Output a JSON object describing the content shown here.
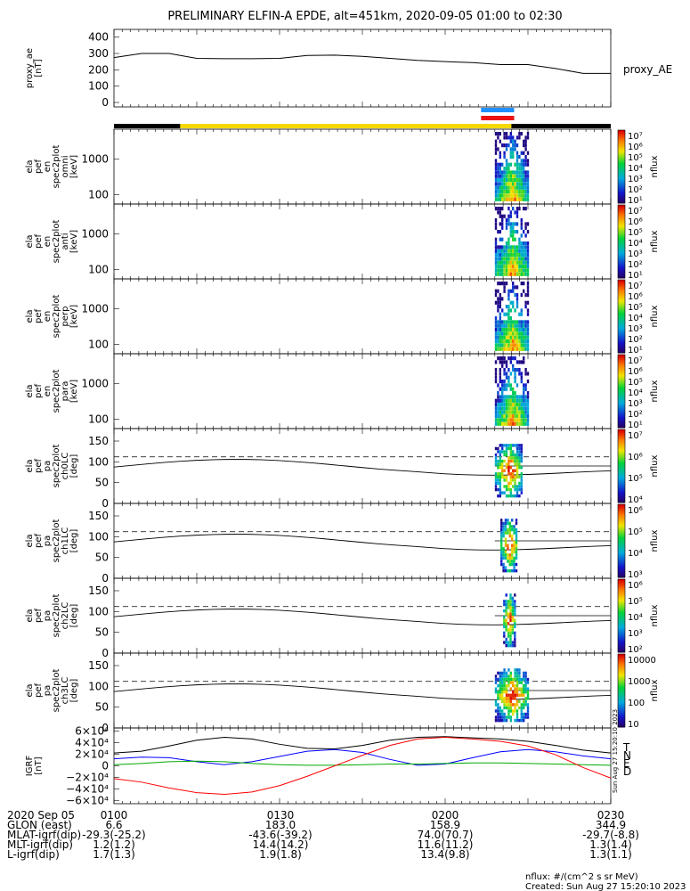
{
  "title": "PRELIMINARY ELFIN-A EPDE, alt=451km, 2020-09-05 01:00 to 02:30",
  "chart_data": {
    "type": "multi-panel",
    "time_range": [
      "2020-09-05 01:00",
      "2020-09-05 02:30"
    ],
    "x_ticks": [
      "0100",
      "0130",
      "0200",
      "0230"
    ],
    "panels": [
      {
        "id": "proxy_ae",
        "type": "line",
        "ylabel": "proxy_ae [nT]",
        "legend": "proxy_AE",
        "ylim": [
          0,
          420
        ],
        "yticks": [
          "400",
          "300",
          "200",
          "100",
          "0"
        ],
        "x_minutes": [
          0,
          5,
          10,
          15,
          20,
          25,
          30,
          35,
          40,
          45,
          50,
          55,
          60,
          65,
          70,
          75,
          80,
          85,
          90
        ],
        "values": [
          275,
          300,
          300,
          270,
          268,
          268,
          270,
          288,
          290,
          282,
          270,
          258,
          250,
          244,
          232,
          232,
          208,
          178,
          178
        ]
      },
      {
        "id": "en_omni",
        "type": "heatmap",
        "ylabel": "ela pef en spec2plot omni [keV]",
        "yscale": "log",
        "ylim": [
          55,
          7000
        ],
        "yticks": [
          "1000",
          "100"
        ],
        "colorbar": {
          "label": "nflux",
          "ticks": [
            "10⁷",
            "10⁶",
            "10⁵",
            "10⁴",
            "10³",
            "10²",
            "10¹"
          ]
        },
        "data_window_minutes": [
          69,
          75
        ]
      },
      {
        "id": "en_anti",
        "type": "heatmap",
        "ylabel": "ela pef en spec2plot anti [keV]",
        "yscale": "log",
        "ylim": [
          55,
          7000
        ],
        "yticks": [
          "1000",
          "100"
        ],
        "colorbar": {
          "label": "nflux",
          "ticks": [
            "10⁷",
            "10⁶",
            "10⁵",
            "10⁴",
            "10³",
            "10²",
            "10¹"
          ]
        },
        "data_window_minutes": [
          69,
          75
        ]
      },
      {
        "id": "en_perp",
        "type": "heatmap",
        "ylabel": "ela pef en spec2plot perp [keV]",
        "yscale": "log",
        "ylim": [
          55,
          7000
        ],
        "yticks": [
          "1000",
          "100"
        ],
        "colorbar": {
          "label": "nflux",
          "ticks": [
            "10⁷",
            "10⁶",
            "10⁵",
            "10⁴",
            "10³",
            "10²",
            "10¹"
          ]
        },
        "data_window_minutes": [
          69,
          75
        ]
      },
      {
        "id": "en_para",
        "type": "heatmap",
        "ylabel": "ela pef en spec2plot para [keV]",
        "yscale": "log",
        "ylim": [
          55,
          7000
        ],
        "yticks": [
          "1000",
          "100"
        ],
        "colorbar": {
          "label": "nflux",
          "ticks": [
            "10⁷",
            "10⁶",
            "10⁵",
            "10⁴",
            "10³",
            "10²",
            "10¹"
          ]
        },
        "data_window_minutes": [
          69,
          75
        ]
      },
      {
        "id": "pa_ch0",
        "type": "heatmap",
        "ylabel": "ela pef pa spec2plot ch0LC [deg]",
        "ylim": [
          0,
          180
        ],
        "yticks": [
          "150",
          "100",
          "50",
          "0"
        ],
        "colorbar": {
          "label": "nflux",
          "ticks": [
            "10⁷",
            "10⁶",
            "10⁵",
            "10⁴"
          ]
        },
        "dashed_line": 112,
        "data_window_minutes": [
          69,
          74
        ]
      },
      {
        "id": "pa_ch1",
        "type": "heatmap",
        "ylabel": "ela pef pa spec2plot ch1LC [deg]",
        "ylim": [
          0,
          180
        ],
        "yticks": [
          "150",
          "100",
          "50",
          "0"
        ],
        "colorbar": {
          "label": "nflux",
          "ticks": [
            "10⁶",
            "10⁵",
            "10⁴",
            "10³"
          ]
        },
        "dashed_line": 112,
        "data_window_minutes": [
          70,
          73
        ]
      },
      {
        "id": "pa_ch2",
        "type": "heatmap",
        "ylabel": "ela pef pa spec2plot ch2LC [deg]",
        "ylim": [
          0,
          180
        ],
        "yticks": [
          "150",
          "100",
          "50",
          "0"
        ],
        "colorbar": {
          "label": "nflux",
          "ticks": [
            "10⁶",
            "10⁵",
            "10⁴",
            "10³",
            "10²"
          ]
        },
        "dashed_line": 112,
        "data_window_minutes": [
          70.5,
          72.5
        ]
      },
      {
        "id": "pa_ch3",
        "type": "heatmap",
        "ylabel": "ela pef pa spec2plot ch3LC [deg]",
        "ylim": [
          0,
          180
        ],
        "yticks": [
          "150",
          "100",
          "50",
          "0"
        ],
        "colorbar": {
          "label": "nflux",
          "ticks": [
            "10000",
            "1000",
            "100",
            "10"
          ]
        },
        "dashed_line": 112,
        "data_window_minutes": [
          69,
          75
        ]
      },
      {
        "id": "igrf",
        "type": "line",
        "ylabel": "IGRF [nT]",
        "ylim": [
          -65000,
          65000
        ],
        "yticks": [
          "6×10⁴",
          "4×10⁴",
          "2×10⁴",
          "0",
          "−2×10⁴",
          "−4×10⁴",
          "−6×10⁴"
        ],
        "legend": [
          "T",
          "N",
          "E",
          "D"
        ],
        "legend_colors": [
          "#000000",
          "#0000ff",
          "#00aa00",
          "#ff0000"
        ],
        "x_minutes": [
          0,
          5,
          10,
          15,
          20,
          25,
          30,
          35,
          40,
          45,
          50,
          55,
          60,
          65,
          70,
          75,
          80,
          85,
          90
        ],
        "series": [
          {
            "name": "T",
            "values": [
              22000,
              25000,
              34000,
              44000,
              49000,
              46000,
              37000,
              30000,
              29000,
              35000,
              44000,
              49000,
              50000,
              48000,
              46000,
              42000,
              35000,
              27000,
              22000
            ]
          },
          {
            "name": "N",
            "values": [
              12000,
              15000,
              14000,
              7000,
              2000,
              7000,
              16000,
              25000,
              28000,
              23000,
              11000,
              1000,
              3000,
              14000,
              24000,
              28000,
              24000,
              17000,
              12000
            ]
          },
          {
            "name": "E",
            "values": [
              2000,
              4000,
              7000,
              8000,
              7000,
              4000,
              2000,
              1000,
              1000,
              2000,
              3000,
              3000,
              4000,
              5000,
              5000,
              4000,
              3000,
              2000,
              1000
            ]
          },
          {
            "name": "D",
            "values": [
              -22000,
              -28000,
              -38000,
              -46000,
              -49000,
              -45000,
              -34000,
              -18000,
              0,
              18000,
              35000,
              46000,
              49000,
              46000,
              42000,
              34000,
              19000,
              -3000,
              -21000
            ]
          }
        ]
      }
    ],
    "ephemeris": {
      "rows": [
        {
          "label": "2020 Sep 05",
          "values": [
            "0100",
            "0130",
            "0200",
            "0230"
          ]
        },
        {
          "label": "GLON (east)",
          "values": [
            "6.6",
            "183.0",
            "158.9",
            "344.9"
          ]
        },
        {
          "label": "MLAT-igrf(dip)",
          "values": [
            "-29.3(-25.2)",
            "-43.6(-39.2)",
            "74.0(70.7)",
            "-29.7(-8.8)"
          ]
        },
        {
          "label": "MLT-igrf(dip)",
          "values": [
            "1.2(1.2)",
            "14.4(14.2)",
            "11.6(11.2)",
            "1.3(1.4)"
          ]
        },
        {
          "label": "L-igrf(dip)",
          "values": [
            "1.7(1.3)",
            "1.9(1.8)",
            "13.4(9.8)",
            "1.3(1.1)"
          ]
        }
      ]
    }
  },
  "side_stamp": "Sun Aug 27 15:20:10 2023",
  "footer": {
    "units": "nflux: #/(cm^2 s sr MeV)",
    "created": "Created: Sun Aug 27 15:20:10 2023"
  }
}
